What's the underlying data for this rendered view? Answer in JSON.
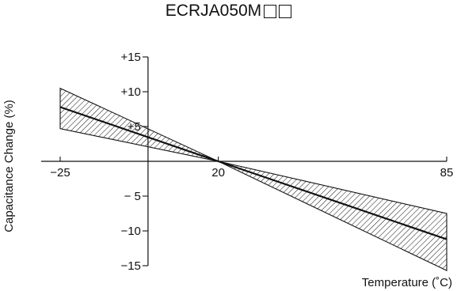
{
  "chart_data": {
    "type": "area",
    "title": "ECRJA050M",
    "title_suffix_boxes": 2,
    "xlabel": "Temperature (˚C)",
    "ylabel": "Capacitance Change (%)",
    "xlim": [
      -25,
      85
    ],
    "ylim": [
      -15,
      15
    ],
    "x_ticks": [
      -25,
      20,
      85
    ],
    "x_tick_labels": [
      "−25",
      "20",
      "85"
    ],
    "y_ticks": [
      15,
      10,
      5,
      -5,
      -10,
      -15
    ],
    "y_tick_labels": [
      "+15",
      "+10",
      "+5",
      "− 5",
      "−10",
      "−15"
    ],
    "grid": false,
    "legend": "none",
    "series": [
      {
        "name": "",
        "x": [
          -25,
          20,
          85
        ],
        "y": [
          7.8,
          0,
          -11.2
        ]
      }
    ],
    "bands": [
      {
        "x": [
          -25,
          20,
          85
        ],
        "y_upper": [
          10.5,
          0,
          -7.5
        ],
        "y_lower": [
          4.7,
          0,
          -15.7
        ]
      }
    ]
  }
}
